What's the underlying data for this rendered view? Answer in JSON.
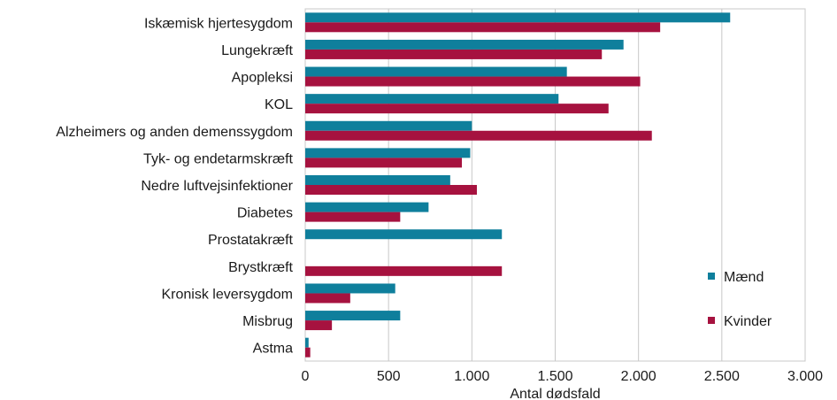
{
  "chart_data": {
    "type": "bar",
    "orientation": "horizontal",
    "title": "",
    "xlabel": "Antal dødsfald",
    "ylabel": "",
    "xlim": [
      0,
      3000
    ],
    "xticks": [
      0,
      500,
      1000,
      1500,
      2000,
      2500,
      3000
    ],
    "xtick_labels": [
      "0",
      "500",
      "1.000",
      "1.500",
      "2.000",
      "2.500",
      "3.000"
    ],
    "grid": "vertical",
    "legend_position": "right",
    "categories": [
      "Iskæmisk hjertesygdom",
      "Lungekræft",
      "Apopleksi",
      "KOL",
      "Alzheimers og anden demenssygdom",
      "Tyk- og endetarmskræft",
      "Nedre luftvejsinfektioner",
      "Diabetes",
      "Prostatakræft",
      "Brystkræft",
      "Kronisk leversygdom",
      "Misbrug",
      "Astma"
    ],
    "series": [
      {
        "name": "Mænd",
        "color": "#0f7f9c",
        "values": [
          2550,
          1910,
          1570,
          1520,
          1000,
          990,
          870,
          740,
          1180,
          0,
          540,
          570,
          20
        ]
      },
      {
        "name": "Kvinder",
        "color": "#a6123f",
        "values": [
          2130,
          1780,
          2010,
          1820,
          2080,
          940,
          1030,
          570,
          0,
          1180,
          270,
          160,
          30
        ]
      }
    ]
  }
}
